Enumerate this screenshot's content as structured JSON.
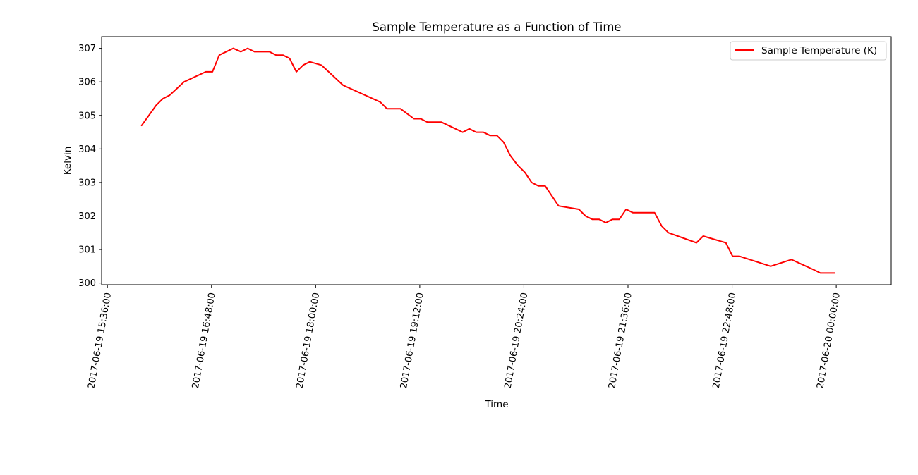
{
  "chart_data": {
    "type": "line",
    "title": "Sample Temperature as a Function of Time",
    "xlabel": "Time",
    "ylabel": "Kelvin",
    "x_axis_type": "datetime",
    "xlim": [
      "2017-06-19 15:32:00",
      "2017-06-20 00:38:00"
    ],
    "ylim": [
      299.95,
      307.35
    ],
    "xticks": [
      "2017-06-19 15:36:00",
      "2017-06-19 16:48:00",
      "2017-06-19 18:00:00",
      "2017-06-19 19:12:00",
      "2017-06-19 20:24:00",
      "2017-06-19 21:36:00",
      "2017-06-19 22:48:00",
      "2017-06-20 00:00:00"
    ],
    "yticks": [
      300,
      301,
      302,
      303,
      304,
      305,
      306,
      307
    ],
    "grid": false,
    "legend": {
      "position": "top-right"
    },
    "colors": {
      "line": "#ff0000",
      "axes": "#000000",
      "legend_border": "#cccccc"
    },
    "series": [
      {
        "name": "Sample Temperature (K)",
        "color": "#ff0000",
        "x": [
          "2017-06-19 15:59:40",
          "2017-06-19 16:09:40",
          "2017-06-19 16:14:20",
          "2017-06-19 16:19:00",
          "2017-06-19 16:29:00",
          "2017-06-19 16:44:00",
          "2017-06-19 16:48:40",
          "2017-06-19 16:53:20",
          "2017-06-19 17:03:00",
          "2017-06-19 17:08:20",
          "2017-06-19 17:13:00",
          "2017-06-19 17:17:40",
          "2017-06-19 17:28:00",
          "2017-06-19 17:32:40",
          "2017-06-19 17:37:20",
          "2017-06-19 17:42:00",
          "2017-06-19 17:46:40",
          "2017-06-19 17:51:20",
          "2017-06-19 17:56:00",
          "2017-06-19 18:04:00",
          "2017-06-19 18:19:00",
          "2017-06-19 18:44:40",
          "2017-06-19 18:49:20",
          "2017-06-19 18:58:40",
          "2017-06-19 19:08:00",
          "2017-06-19 19:12:40",
          "2017-06-19 19:17:20",
          "2017-06-19 19:27:00",
          "2017-06-19 19:41:40",
          "2017-06-19 19:46:20",
          "2017-06-19 19:51:00",
          "2017-06-19 19:56:00",
          "2017-06-19 20:00:40",
          "2017-06-19 20:05:20",
          "2017-06-19 20:10:00",
          "2017-06-19 20:14:40",
          "2017-06-19 20:20:00",
          "2017-06-19 20:24:40",
          "2017-06-19 20:29:20",
          "2017-06-19 20:34:00",
          "2017-06-19 20:38:40",
          "2017-06-19 20:43:20",
          "2017-06-19 20:48:00",
          "2017-06-19 21:02:00",
          "2017-06-19 21:06:40",
          "2017-06-19 21:11:20",
          "2017-06-19 21:16:00",
          "2017-06-19 21:20:40",
          "2017-06-19 21:25:20",
          "2017-06-19 21:30:00",
          "2017-06-19 21:34:40",
          "2017-06-19 21:39:20",
          "2017-06-19 21:54:20",
          "2017-06-19 21:59:20",
          "2017-06-19 22:04:00",
          "2017-06-19 22:23:20",
          "2017-06-19 22:28:00",
          "2017-06-19 22:43:40",
          "2017-06-19 22:48:20",
          "2017-06-19 22:53:00",
          "2017-06-19 23:14:40",
          "2017-06-19 23:29:00",
          "2017-06-19 23:44:20",
          "2017-06-19 23:49:00",
          "2017-06-19 23:54:00",
          "2017-06-19 23:59:00"
        ],
        "y": [
          304.7,
          305.3,
          305.5,
          305.6,
          306.0,
          306.3,
          306.3,
          306.8,
          307.0,
          306.9,
          307.0,
          306.9,
          306.9,
          306.8,
          306.8,
          306.7,
          306.3,
          306.5,
          306.6,
          306.5,
          305.9,
          305.4,
          305.2,
          305.2,
          304.9,
          304.9,
          304.8,
          304.8,
          304.5,
          304.6,
          304.5,
          304.5,
          304.4,
          304.4,
          304.2,
          303.8,
          303.5,
          303.3,
          303.0,
          302.9,
          302.9,
          302.6,
          302.3,
          302.2,
          302.0,
          301.9,
          301.9,
          301.8,
          301.9,
          301.9,
          302.2,
          302.1,
          302.1,
          301.7,
          301.5,
          301.2,
          301.4,
          301.2,
          300.8,
          300.8,
          300.5,
          300.7,
          300.4,
          300.3,
          300.3,
          300.3
        ]
      }
    ]
  }
}
